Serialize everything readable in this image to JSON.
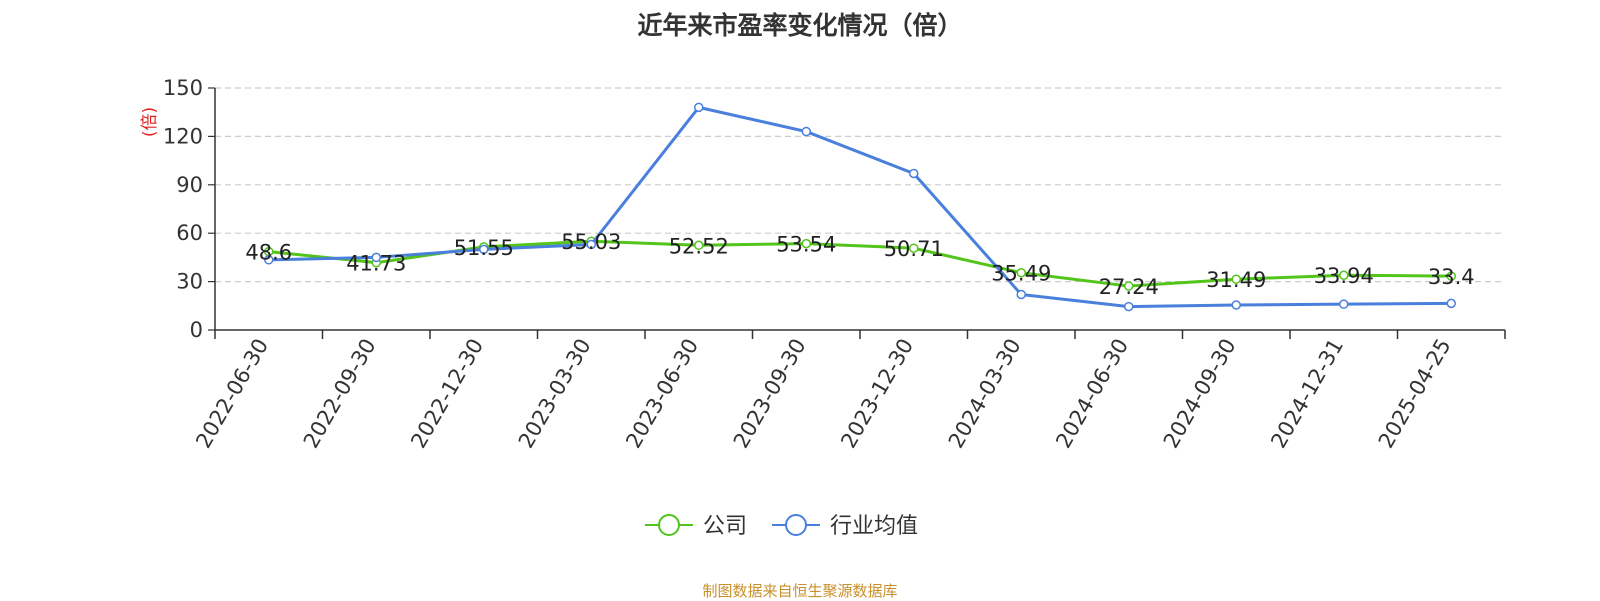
{
  "chart_data": {
    "type": "line",
    "title": "近年来市盈率变化情况（倍）",
    "ylabel": "(倍)",
    "xlabel": "",
    "categories": [
      "2022-06-30",
      "2022-09-30",
      "2022-12-30",
      "2023-03-30",
      "2023-06-30",
      "2023-09-30",
      "2023-12-30",
      "2024-03-30",
      "2024-06-30",
      "2024-09-30",
      "2024-12-31",
      "2025-04-25"
    ],
    "yticks": [
      "0",
      "30",
      "60",
      "90",
      "120",
      "150"
    ],
    "ylim": [
      0,
      150
    ],
    "grid": true,
    "legend_position": "bottom",
    "series": [
      {
        "name": "公司",
        "color": "#52c41a",
        "show_labels": true,
        "values": [
          48.6,
          41.73,
          51.55,
          55.03,
          52.52,
          53.54,
          50.71,
          35.49,
          27.24,
          31.49,
          33.94,
          33.4
        ],
        "labels": [
          "48.6",
          "41.73",
          "51.55",
          "55.03",
          "52.52",
          "53.54",
          "50.71",
          "35.49",
          "27.24",
          "31.49",
          "33.94",
          "33.4"
        ]
      },
      {
        "name": "行业均值",
        "color": "#4a7fdc",
        "show_labels": false,
        "values": [
          43.5,
          45,
          50,
          53,
          138,
          123,
          97,
          22,
          14.5,
          15.5,
          16,
          16.5
        ]
      }
    ]
  },
  "source": "制图数据来自恒生聚源数据库"
}
